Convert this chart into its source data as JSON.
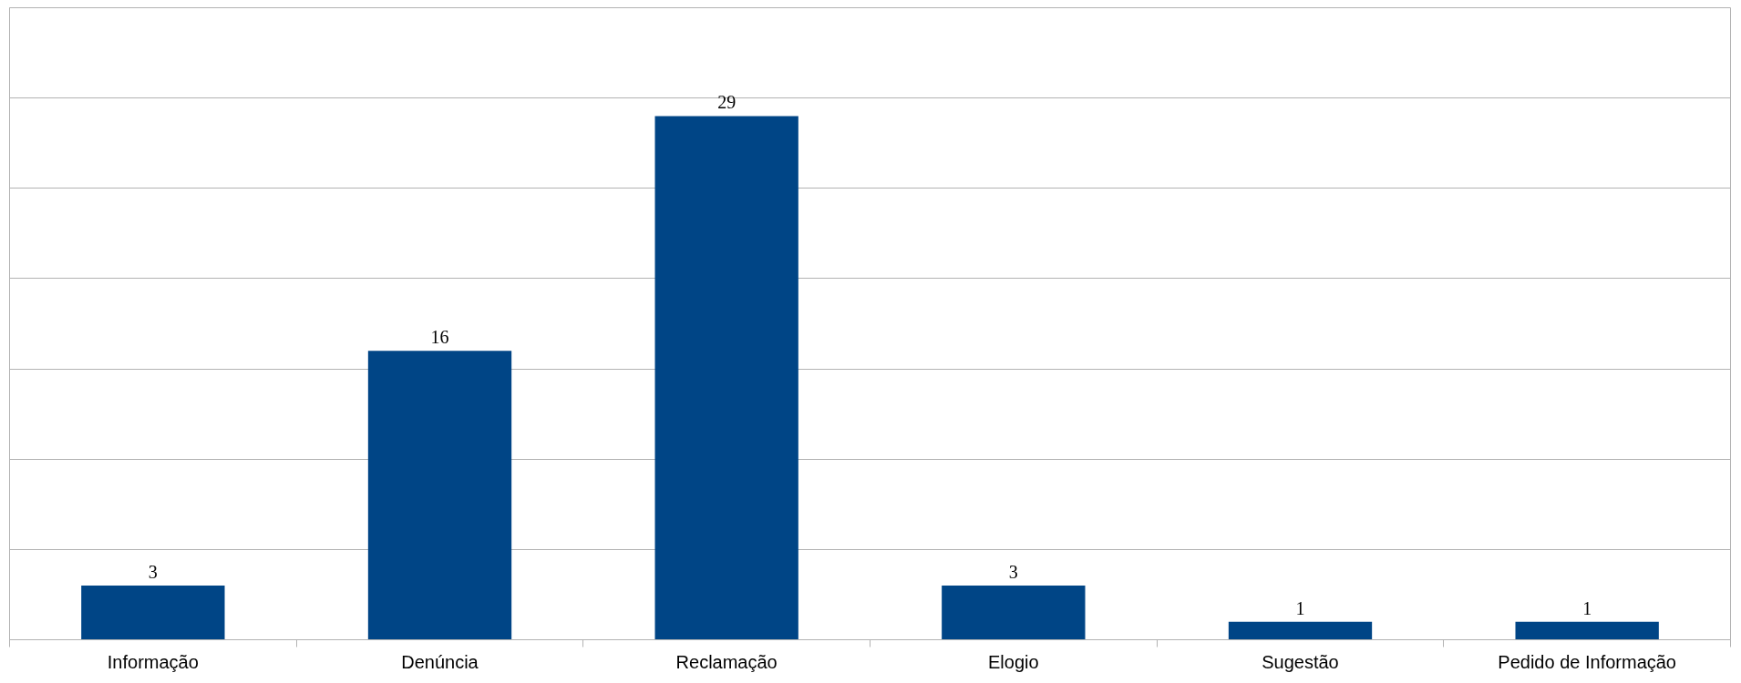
{
  "chart_data": {
    "type": "bar",
    "categories": [
      "Informação",
      "Denúncia",
      "Reclamação",
      "Elogio",
      "Sugestão",
      "Pedido de Informação"
    ],
    "values": [
      3,
      16,
      29,
      3,
      1,
      1
    ],
    "color": "#004586",
    "data_labels": true,
    "ylim": [
      0,
      35
    ],
    "yticks": [
      {
        "value": 0,
        "label": null
      },
      {
        "value": 5,
        "label": null
      },
      {
        "value": 10,
        "label": null
      },
      {
        "value": 15,
        "label": null
      },
      {
        "value": 20,
        "label": null
      },
      {
        "value": 25,
        "label": null
      },
      {
        "value": 30,
        "label": null
      },
      {
        "value": 35,
        "label": null
      }
    ],
    "grid": "y",
    "tick_labels": "x"
  }
}
